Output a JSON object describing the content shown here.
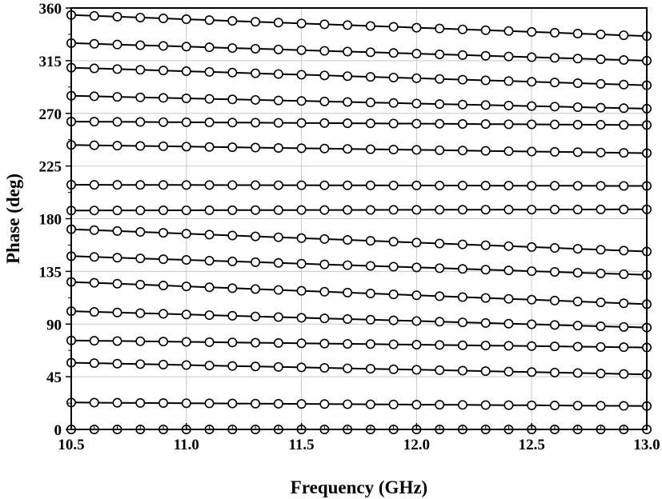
{
  "chart_data": {
    "type": "line",
    "title": "",
    "xlabel": "Frequency (GHz)",
    "ylabel": "Phase (deg)",
    "xlim": [
      10.5,
      13.0
    ],
    "ylim": [
      0,
      360
    ],
    "xticks": [
      "10.5",
      "11.0",
      "11.5",
      "12.0",
      "12.5",
      "13.0"
    ],
    "xtick_values": [
      10.5,
      11.0,
      11.5,
      12.0,
      12.5,
      13.0
    ],
    "yticks": [
      "0",
      "45",
      "90",
      "135",
      "180",
      "225",
      "270",
      "315",
      "360"
    ],
    "ytick_values": [
      0,
      45,
      90,
      135,
      180,
      225,
      270,
      315,
      360
    ],
    "grid": true,
    "legend": "none",
    "marker": "open-circle",
    "x_start": 10.5,
    "x_step": 0.1,
    "x_count": 26,
    "series": [
      {
        "start": 0,
        "end": 0
      },
      {
        "start": 23,
        "end": 20
      },
      {
        "start": 57,
        "end": 47
      },
      {
        "start": 76,
        "end": 70
      },
      {
        "start": 101,
        "end": 87
      },
      {
        "start": 126,
        "end": 107
      },
      {
        "start": 148,
        "end": 132
      },
      {
        "start": 171,
        "end": 152
      },
      {
        "start": 187,
        "end": 188
      },
      {
        "start": 209,
        "end": 208
      },
      {
        "start": 243,
        "end": 236
      },
      {
        "start": 263,
        "end": 260
      },
      {
        "start": 285,
        "end": 274
      },
      {
        "start": 309,
        "end": 294
      },
      {
        "start": 330,
        "end": 315
      },
      {
        "start": 354,
        "end": 336
      }
    ]
  }
}
